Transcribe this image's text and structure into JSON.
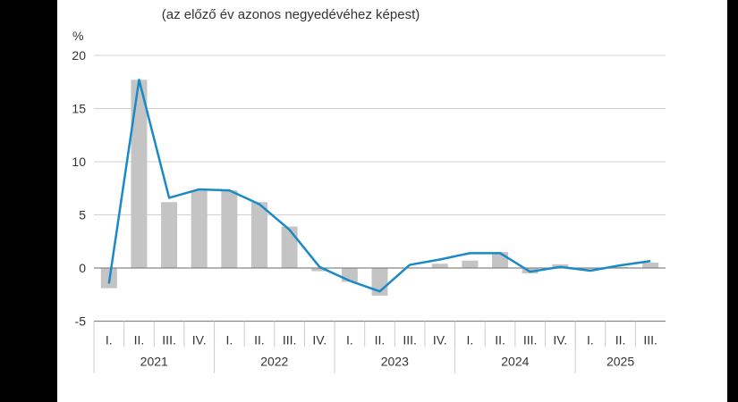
{
  "chart_data": {
    "type": "bar+line",
    "subtitle": "(az előző év azonos negyedévéhez képest)",
    "ylabel": "%",
    "ylim": [
      -5,
      20
    ],
    "yticks": [
      -5,
      0,
      5,
      10,
      15,
      20
    ],
    "grid": true,
    "categories": [
      "I.",
      "II.",
      "III.",
      "IV.",
      "I.",
      "II.",
      "III.",
      "IV.",
      "I.",
      "II.",
      "III.",
      "IV.",
      "I.",
      "II.",
      "III.",
      "IV.",
      "I.",
      "II.",
      "III."
    ],
    "years": [
      {
        "label": "2021",
        "quarters": 4
      },
      {
        "label": "2022",
        "quarters": 4
      },
      {
        "label": "2023",
        "quarters": 4
      },
      {
        "label": "2024",
        "quarters": 4
      },
      {
        "label": "2025",
        "quarters": 3
      }
    ],
    "series": [
      {
        "type": "bar",
        "color": "#c4c4c4",
        "values": [
          -1.9,
          17.7,
          6.2,
          7.3,
          7.3,
          6.2,
          3.9,
          -0.3,
          -1.3,
          -2.6,
          0.0,
          0.4,
          0.7,
          1.5,
          -0.5,
          0.35,
          -0.1,
          0.1,
          0.5
        ]
      },
      {
        "type": "line",
        "color": "#1a8ac6",
        "values": [
          -1.45,
          17.7,
          6.6,
          7.4,
          7.3,
          6.0,
          3.6,
          0.1,
          -1.2,
          -2.2,
          0.3,
          0.8,
          1.4,
          1.4,
          -0.35,
          0.1,
          -0.25,
          0.25,
          0.65
        ]
      }
    ]
  }
}
